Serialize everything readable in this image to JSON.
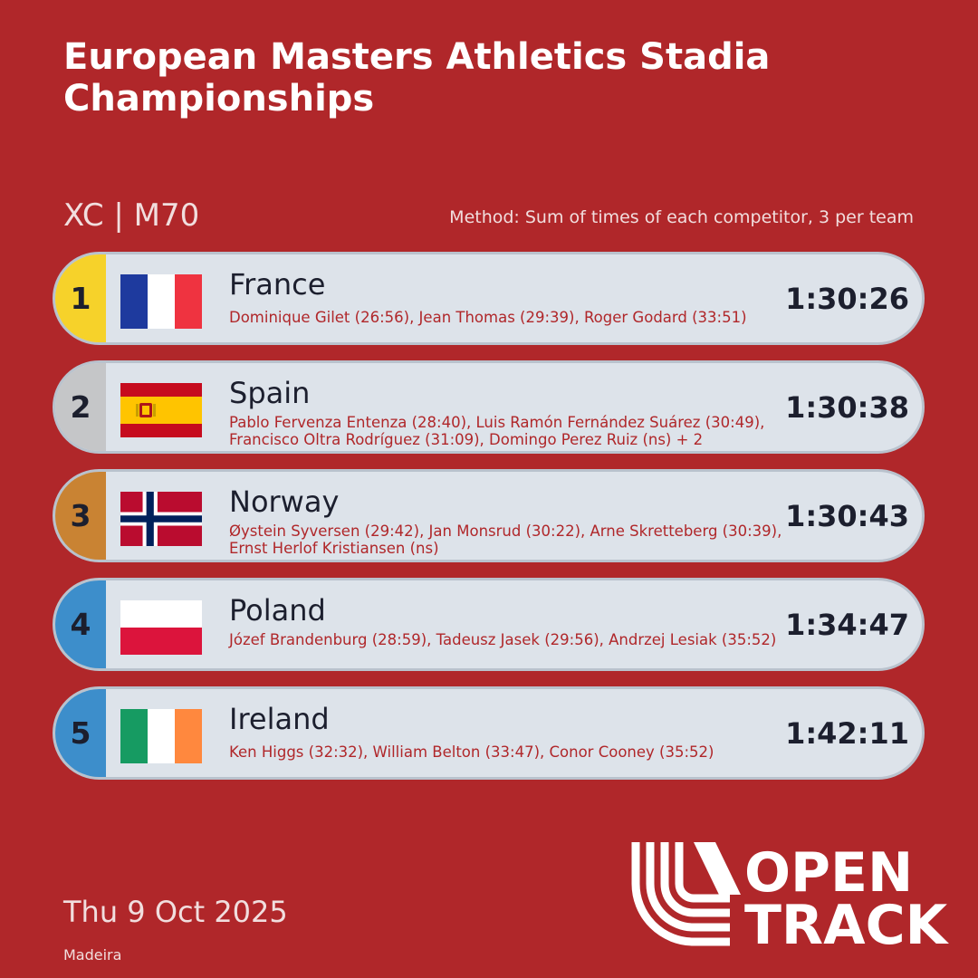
{
  "title": "European Masters Athletics Stadia Championships",
  "event": "XC | M70",
  "method": "Method: Sum of times of each competitor, 3 per team",
  "date": "Thu 9 Oct 2025",
  "venue": "Madeira",
  "logo": {
    "line1": "OPEN",
    "line2": "TRACK"
  },
  "results": [
    {
      "rank": "1",
      "country": "France",
      "athletes": "Dominique Gilet (26:56), Jean Thomas (29:39), Roger Godard (33:51)",
      "time": "1:30:26",
      "rank_color": "#f6d22a"
    },
    {
      "rank": "2",
      "country": "Spain",
      "athletes": "Pablo Fervenza Entenza (28:40), Luis Ramón Fernández Suárez (30:49), Francisco Oltra Rodríguez (31:09), Domingo Perez Ruiz (ns) + 2",
      "time": "1:30:38",
      "rank_color": "#c5c6c8"
    },
    {
      "rank": "3",
      "country": "Norway",
      "athletes": "Øystein Syversen (29:42), Jan Monsrud (30:22), Arne Skretteberg (30:39), Ernst Herlof Kristiansen (ns)",
      "time": "1:30:43",
      "rank_color": "#c98333"
    },
    {
      "rank": "4",
      "country": "Poland",
      "athletes": "Józef Brandenburg (28:59), Tadeusz Jasek (29:56), Andrzej Lesiak (35:52)",
      "time": "1:34:47",
      "rank_color": "#3d8ecb"
    },
    {
      "rank": "5",
      "country": "Ireland",
      "athletes": "Ken Higgs (32:32), William Belton (33:47), Conor Cooney (35:52)",
      "time": "1:42:11",
      "rank_color": "#3d8ecb"
    }
  ]
}
